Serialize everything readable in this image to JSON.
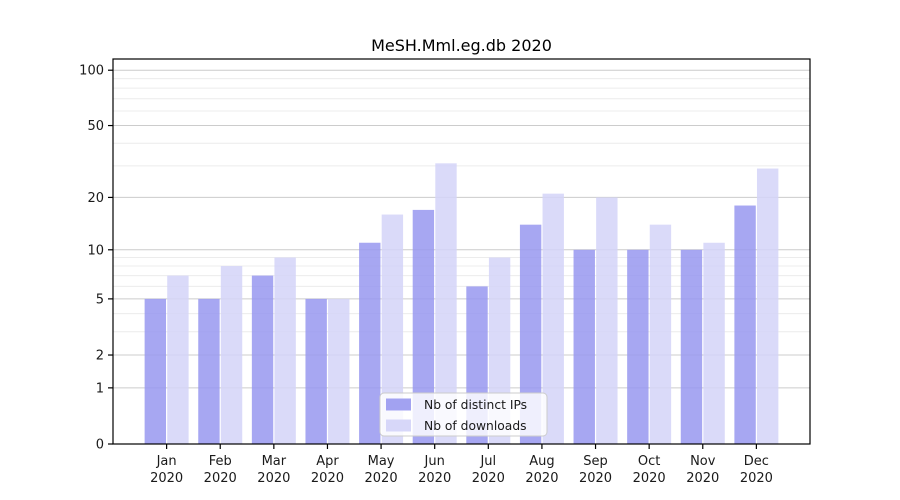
{
  "chart_data": {
    "type": "bar",
    "title": "MeSH.Mml.eg.db 2020",
    "categories": [
      "Jan 2020",
      "Feb 2020",
      "Mar 2020",
      "Apr 2020",
      "May 2020",
      "Jun 2020",
      "Jul 2020",
      "Aug 2020",
      "Sep 2020",
      "Oct 2020",
      "Nov 2020",
      "Dec 2020"
    ],
    "series": [
      {
        "name": "Nb of distinct IPs",
        "color": "#9898f0",
        "values": [
          5,
          5,
          7,
          5,
          11,
          17,
          6,
          14,
          10,
          10,
          10,
          18
        ]
      },
      {
        "name": "Nb of downloads",
        "color": "#d3d3f8",
        "values": [
          7,
          8,
          9,
          5,
          16,
          31,
          9,
          21,
          20,
          14,
          11,
          29
        ]
      }
    ],
    "xlabel": "",
    "ylabel": "",
    "yscale": "log1p",
    "ylim": [
      0,
      115
    ],
    "yticks_major": [
      0,
      1,
      2,
      5,
      10,
      20,
      50,
      100
    ],
    "yticks_minor": [
      3,
      4,
      6,
      7,
      8,
      9,
      30,
      40,
      60,
      70,
      80,
      90
    ],
    "grid": true,
    "legend_position": "bottom-center",
    "colors": {
      "axis": "#000000",
      "grid_major": "#cccccc",
      "grid_minor": "#ececec",
      "tick_text": "#1a1a1a",
      "legend_border": "#cccccc",
      "legend_bg": "#ffffff"
    }
  }
}
